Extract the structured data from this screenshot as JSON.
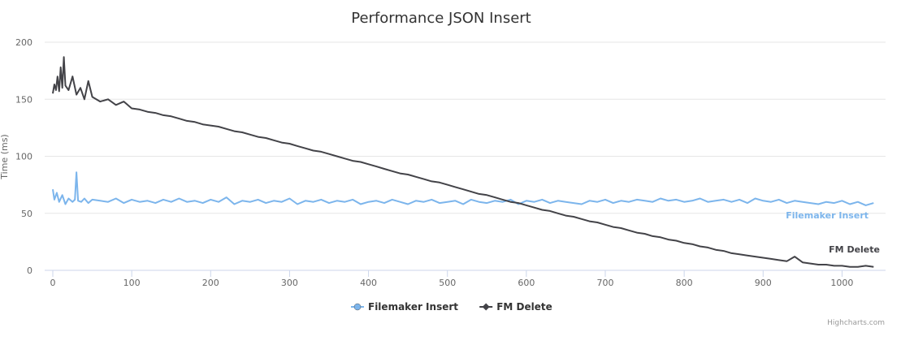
{
  "credits": "Highcharts.com",
  "chart_data": {
    "type": "line",
    "title": "Performance JSON Insert",
    "xlabel": "",
    "ylabel": "Time (ms)",
    "xlim": [
      0,
      1050
    ],
    "ylim": [
      0,
      200
    ],
    "x_ticks": [
      0,
      100,
      200,
      300,
      400,
      500,
      600,
      700,
      800,
      900,
      1000
    ],
    "y_ticks": [
      0,
      50,
      100,
      150,
      200
    ],
    "grid": true,
    "legend_position": "bottom-center",
    "series": [
      {
        "name": "Filemaker Insert",
        "color": "#7cb5ec",
        "marker": "circle",
        "x": [
          0,
          2,
          5,
          8,
          12,
          16,
          20,
          25,
          28,
          30,
          32,
          36,
          40,
          45,
          50,
          60,
          70,
          80,
          90,
          100,
          110,
          120,
          130,
          140,
          150,
          160,
          170,
          180,
          190,
          200,
          210,
          220,
          230,
          240,
          250,
          260,
          270,
          280,
          290,
          300,
          310,
          320,
          330,
          340,
          350,
          360,
          370,
          380,
          390,
          400,
          410,
          420,
          430,
          440,
          450,
          460,
          470,
          480,
          490,
          500,
          510,
          520,
          530,
          540,
          550,
          560,
          570,
          580,
          590,
          600,
          610,
          620,
          630,
          640,
          650,
          660,
          670,
          680,
          690,
          700,
          710,
          720,
          730,
          740,
          750,
          760,
          770,
          780,
          790,
          800,
          810,
          820,
          830,
          840,
          850,
          860,
          870,
          880,
          890,
          900,
          910,
          920,
          930,
          940,
          950,
          960,
          970,
          980,
          990,
          1000,
          1010,
          1020,
          1030,
          1040
        ],
        "values": [
          71,
          62,
          68,
          60,
          66,
          58,
          63,
          60,
          62,
          86,
          61,
          60,
          63,
          59,
          62,
          61,
          60,
          63,
          59,
          62,
          60,
          61,
          59,
          62,
          60,
          63,
          60,
          61,
          59,
          62,
          60,
          64,
          58,
          61,
          60,
          62,
          59,
          61,
          60,
          63,
          58,
          61,
          60,
          62,
          59,
          61,
          60,
          62,
          58,
          60,
          61,
          59,
          62,
          60,
          58,
          61,
          60,
          62,
          59,
          60,
          61,
          58,
          62,
          60,
          59,
          61,
          60,
          62,
          58,
          61,
          60,
          62,
          59,
          61,
          60,
          59,
          58,
          61,
          60,
          62,
          59,
          61,
          60,
          62,
          61,
          60,
          63,
          61,
          62,
          60,
          61,
          63,
          60,
          61,
          62,
          60,
          62,
          59,
          63,
          61,
          60,
          62,
          59,
          61,
          60,
          59,
          58,
          60,
          59,
          61,
          58,
          60,
          57,
          59
        ]
      },
      {
        "name": "FM Delete",
        "color": "#434348",
        "marker": "diamond",
        "x": [
          0,
          2,
          4,
          6,
          8,
          10,
          12,
          14,
          16,
          20,
          25,
          30,
          35,
          40,
          45,
          50,
          60,
          70,
          80,
          90,
          100,
          110,
          120,
          130,
          140,
          150,
          160,
          170,
          180,
          190,
          200,
          210,
          220,
          230,
          240,
          250,
          260,
          270,
          280,
          290,
          300,
          310,
          320,
          330,
          340,
          350,
          360,
          370,
          380,
          390,
          400,
          410,
          420,
          430,
          440,
          450,
          460,
          470,
          480,
          490,
          500,
          510,
          520,
          530,
          540,
          550,
          560,
          570,
          580,
          590,
          600,
          610,
          620,
          630,
          640,
          650,
          660,
          670,
          680,
          690,
          700,
          710,
          720,
          730,
          740,
          750,
          760,
          770,
          780,
          790,
          800,
          810,
          820,
          830,
          840,
          850,
          860,
          870,
          880,
          890,
          900,
          910,
          920,
          930,
          940,
          950,
          960,
          970,
          980,
          990,
          1000,
          1010,
          1020,
          1030,
          1040
        ],
        "values": [
          155,
          163,
          158,
          170,
          157,
          178,
          160,
          187,
          162,
          158,
          170,
          154,
          160,
          150,
          166,
          152,
          148,
          150,
          145,
          148,
          142,
          141,
          139,
          138,
          136,
          135,
          133,
          131,
          130,
          128,
          127,
          126,
          124,
          122,
          121,
          119,
          117,
          116,
          114,
          112,
          111,
          109,
          107,
          105,
          104,
          102,
          100,
          98,
          96,
          95,
          93,
          91,
          89,
          87,
          85,
          84,
          82,
          80,
          78,
          77,
          75,
          73,
          71,
          69,
          67,
          66,
          64,
          62,
          60,
          59,
          57,
          55,
          53,
          52,
          50,
          48,
          47,
          45,
          43,
          42,
          40,
          38,
          37,
          35,
          33,
          32,
          30,
          29,
          27,
          26,
          24,
          23,
          21,
          20,
          18,
          17,
          15,
          14,
          13,
          12,
          11,
          10,
          9,
          8,
          12,
          7,
          6,
          5,
          5,
          4,
          4,
          3,
          3,
          4,
          3
        ]
      }
    ]
  }
}
